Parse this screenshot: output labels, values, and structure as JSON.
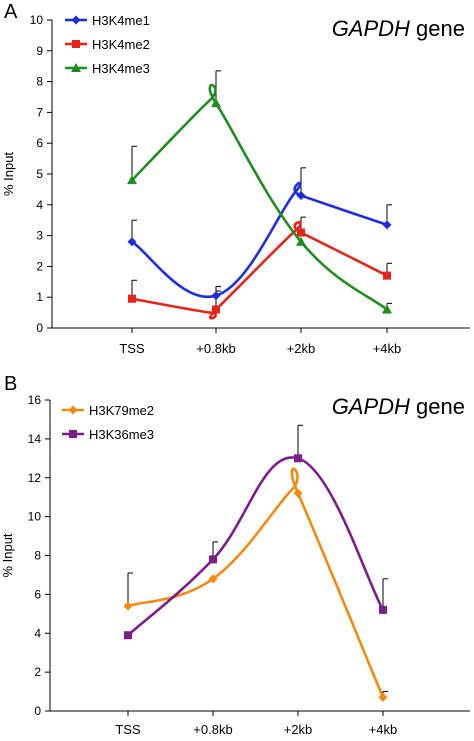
{
  "chart_data": [
    {
      "panel": "A",
      "type": "line",
      "title": {
        "gene": "GAPDH",
        "suffix": " gene"
      },
      "xlabel": "",
      "ylabel": "% Input",
      "categories": [
        "TSS",
        "+0.8kb",
        "+2kb",
        "+4kb"
      ],
      "ylim": [
        0,
        10
      ],
      "yticks": [
        0,
        1,
        2,
        3,
        4,
        5,
        6,
        7,
        8,
        9,
        10
      ],
      "grid": false,
      "legend": "top-left",
      "series": [
        {
          "name": "H3K4me1",
          "color": "#1f2de0",
          "marker": "diamond",
          "values": [
            2.8,
            1.05,
            4.3,
            3.35
          ],
          "errors": [
            0.7,
            0.3,
            0.9,
            0.65
          ],
          "peaks": [
            null,
            null,
            4.4,
            null
          ]
        },
        {
          "name": "H3K4me2",
          "color": "#e8231b",
          "marker": "square",
          "values": [
            0.95,
            0.6,
            3.1,
            1.7
          ],
          "errors": [
            0.6,
            0.6,
            0.5,
            0.4
          ],
          "peaks": [
            null,
            0.5,
            3.15,
            null
          ]
        },
        {
          "name": "H3K4me3",
          "color": "#1f8c1f",
          "marker": "triangle",
          "values": [
            4.8,
            7.3,
            2.8,
            0.6
          ],
          "errors": [
            1.1,
            1.05,
            0,
            0.2
          ],
          "peaks": [
            null,
            7.4,
            null,
            null
          ]
        }
      ]
    },
    {
      "panel": "B",
      "type": "line",
      "title": {
        "gene": "GAPDH",
        "suffix": " gene"
      },
      "xlabel": "",
      "ylabel": "% Input",
      "categories": [
        "TSS",
        "+0.8kb",
        "+2kb",
        "+4kb"
      ],
      "ylim": [
        0,
        16
      ],
      "yticks": [
        0,
        2,
        4,
        6,
        8,
        10,
        12,
        14,
        16
      ],
      "grid": false,
      "legend": "top-left",
      "series": [
        {
          "name": "H3K79me2",
          "color": "#f08a10",
          "marker": "diamond",
          "values": [
            5.4,
            6.8,
            11.2,
            0.7
          ],
          "errors": [
            1.7,
            0,
            0,
            0.3
          ],
          "peaks": [
            null,
            null,
            11.4,
            null
          ]
        },
        {
          "name": "H3K36me3",
          "color": "#7b1e8c",
          "marker": "square",
          "values": [
            3.9,
            7.8,
            13.0,
            5.2
          ],
          "errors": [
            0,
            0.9,
            1.7,
            1.6
          ],
          "peaks": [
            null,
            null,
            null,
            null
          ]
        }
      ]
    }
  ]
}
